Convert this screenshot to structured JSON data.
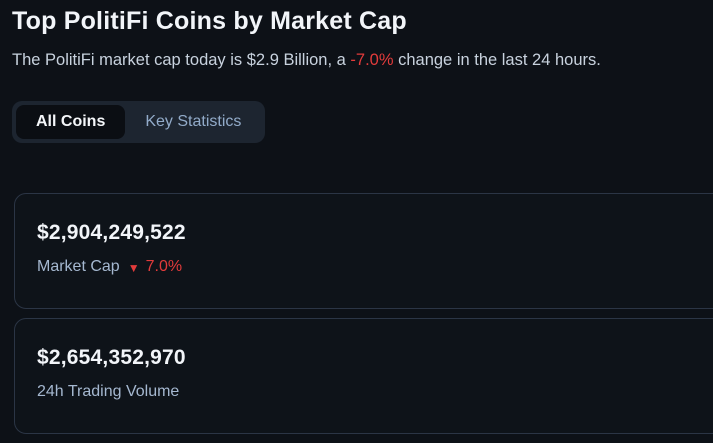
{
  "page": {
    "title": "Top PolitiFi Coins by Market Cap",
    "subtitle_prefix": "The PolitiFi market cap today is $2.9 Billion, a ",
    "subtitle_change": "-7.0%",
    "subtitle_suffix": " change in the last 24 hours."
  },
  "tabs": [
    {
      "label": "All Coins",
      "active": true
    },
    {
      "label": "Key Statistics",
      "active": false
    }
  ],
  "stats": [
    {
      "value": "$2,904,249,522",
      "label": "Market Cap",
      "change": "7.0%",
      "direction": "down"
    },
    {
      "value": "$2,654,352,970",
      "label": "24h Trading Volume"
    }
  ],
  "icons": {
    "triangle_down": "▼"
  },
  "colors": {
    "background": "#0d1117",
    "card_border": "#2b3545",
    "negative": "#e23b3b",
    "text_primary": "#f2f5f9",
    "text_muted": "#a5b8d0"
  }
}
